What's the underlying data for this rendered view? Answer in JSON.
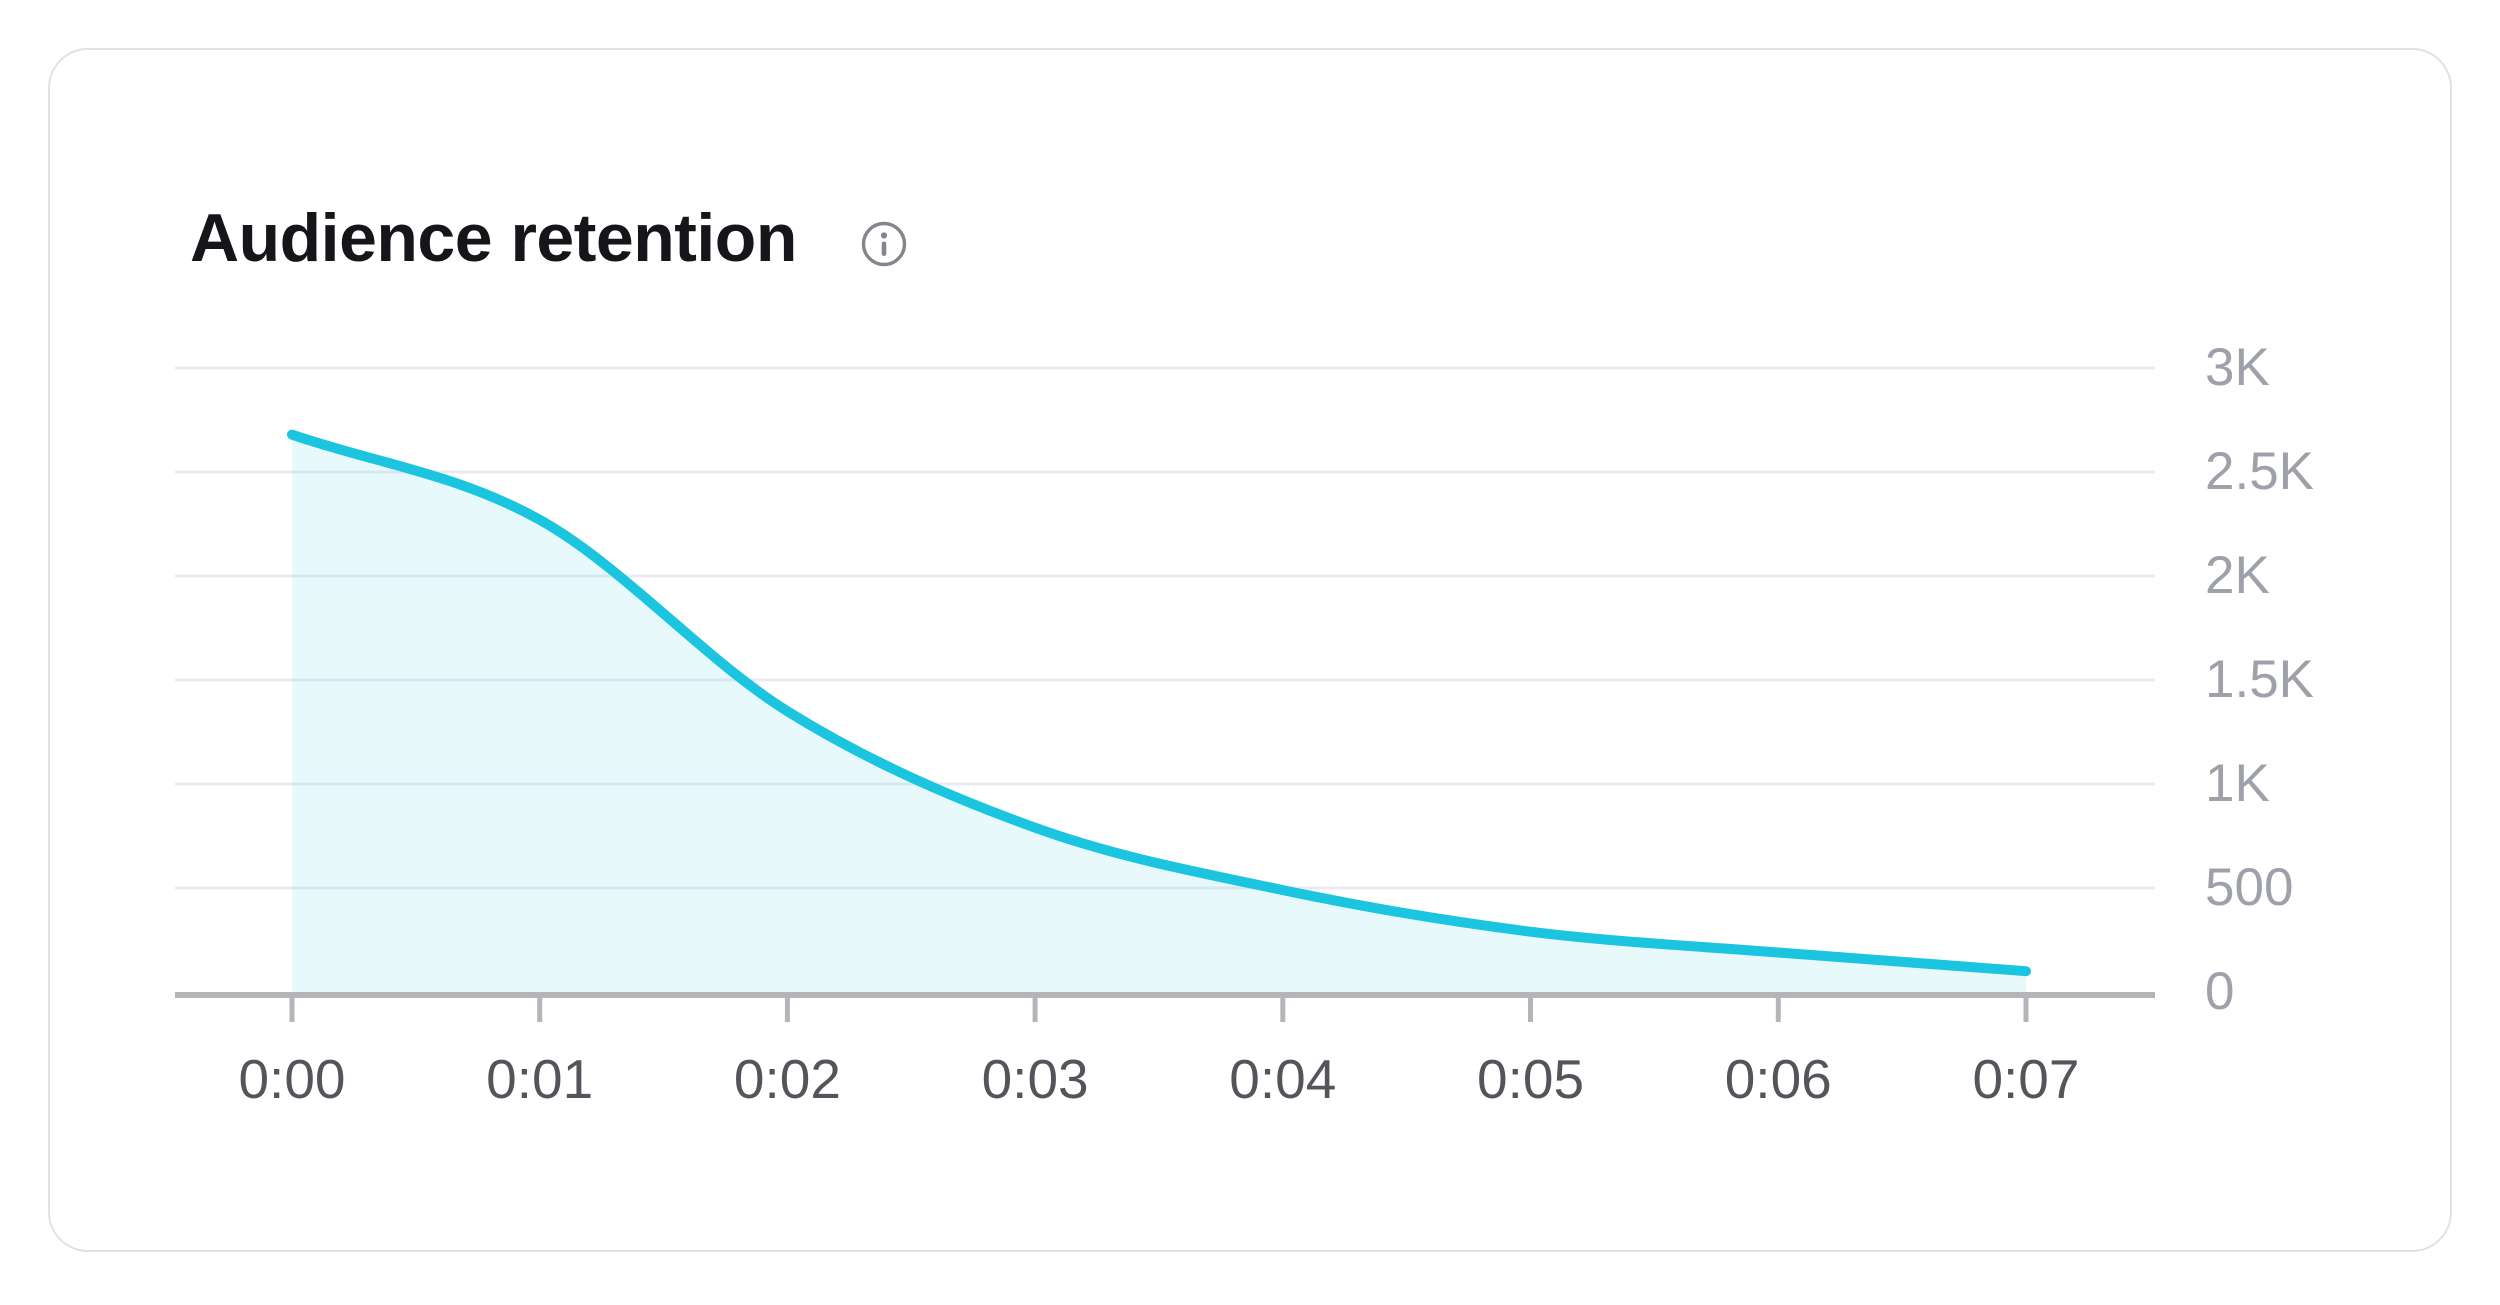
{
  "card": {
    "title": "Audience retention"
  },
  "chart_data": {
    "type": "area",
    "title": "Audience retention",
    "x_ticks": [
      "0:00",
      "0:01",
      "0:02",
      "0:03",
      "0:04",
      "0:05",
      "0:06",
      "0:07"
    ],
    "values": [
      2680,
      2270,
      1350,
      790,
      490,
      290,
      190,
      100
    ],
    "y_ticks": [
      "3K",
      "2.5K",
      "2K",
      "1.5K",
      "1K",
      "500",
      "0"
    ],
    "y_tick_values": [
      3000,
      2500,
      2000,
      1500,
      1000,
      500,
      0
    ],
    "ylim": [
      0,
      3000
    ],
    "grid": "horizontal",
    "legend": "none",
    "line_color": "#1BC5E0",
    "fill_opacity": 0.1,
    "grid_color": "#EAECF4",
    "axis_color": "#B4B5B9",
    "y_label_color": "#9EA0AA",
    "x_label_color": "#54555B",
    "title_color": "#15161A",
    "info_icon_color": "#85868D"
  }
}
